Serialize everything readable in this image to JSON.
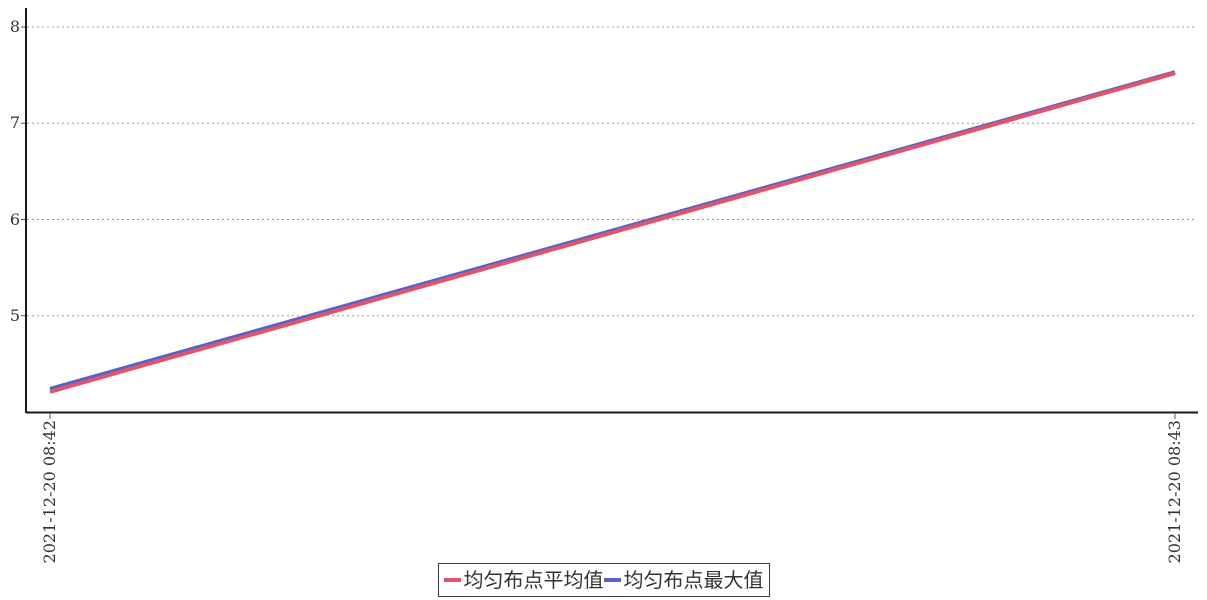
{
  "chart_data": {
    "type": "line",
    "title": "",
    "xlabel": "",
    "ylabel": "",
    "x_tick_labels": [
      "2021-12-20 08:42",
      "2021-12-20 08:43"
    ],
    "y_tick_labels": [
      "8",
      "7",
      "6",
      "5"
    ],
    "y_tick_values": [
      8,
      7,
      6,
      5
    ],
    "ylim": [
      4,
      8.2
    ],
    "grid": "horizontal-dotted",
    "legend_position": "bottom-center",
    "series": [
      {
        "name": "均匀布点平均值",
        "color": "#e0556a",
        "values": [
          4.21,
          7.52
        ]
      },
      {
        "name": "均匀布点最大值",
        "color": "#5362cd",
        "values": [
          4.24,
          7.53
        ]
      }
    ],
    "colors": {
      "axis": "#1a1a1a",
      "gridline": "#999999",
      "tick": "#555555",
      "text": "#333333",
      "background": "#ffffff"
    }
  }
}
